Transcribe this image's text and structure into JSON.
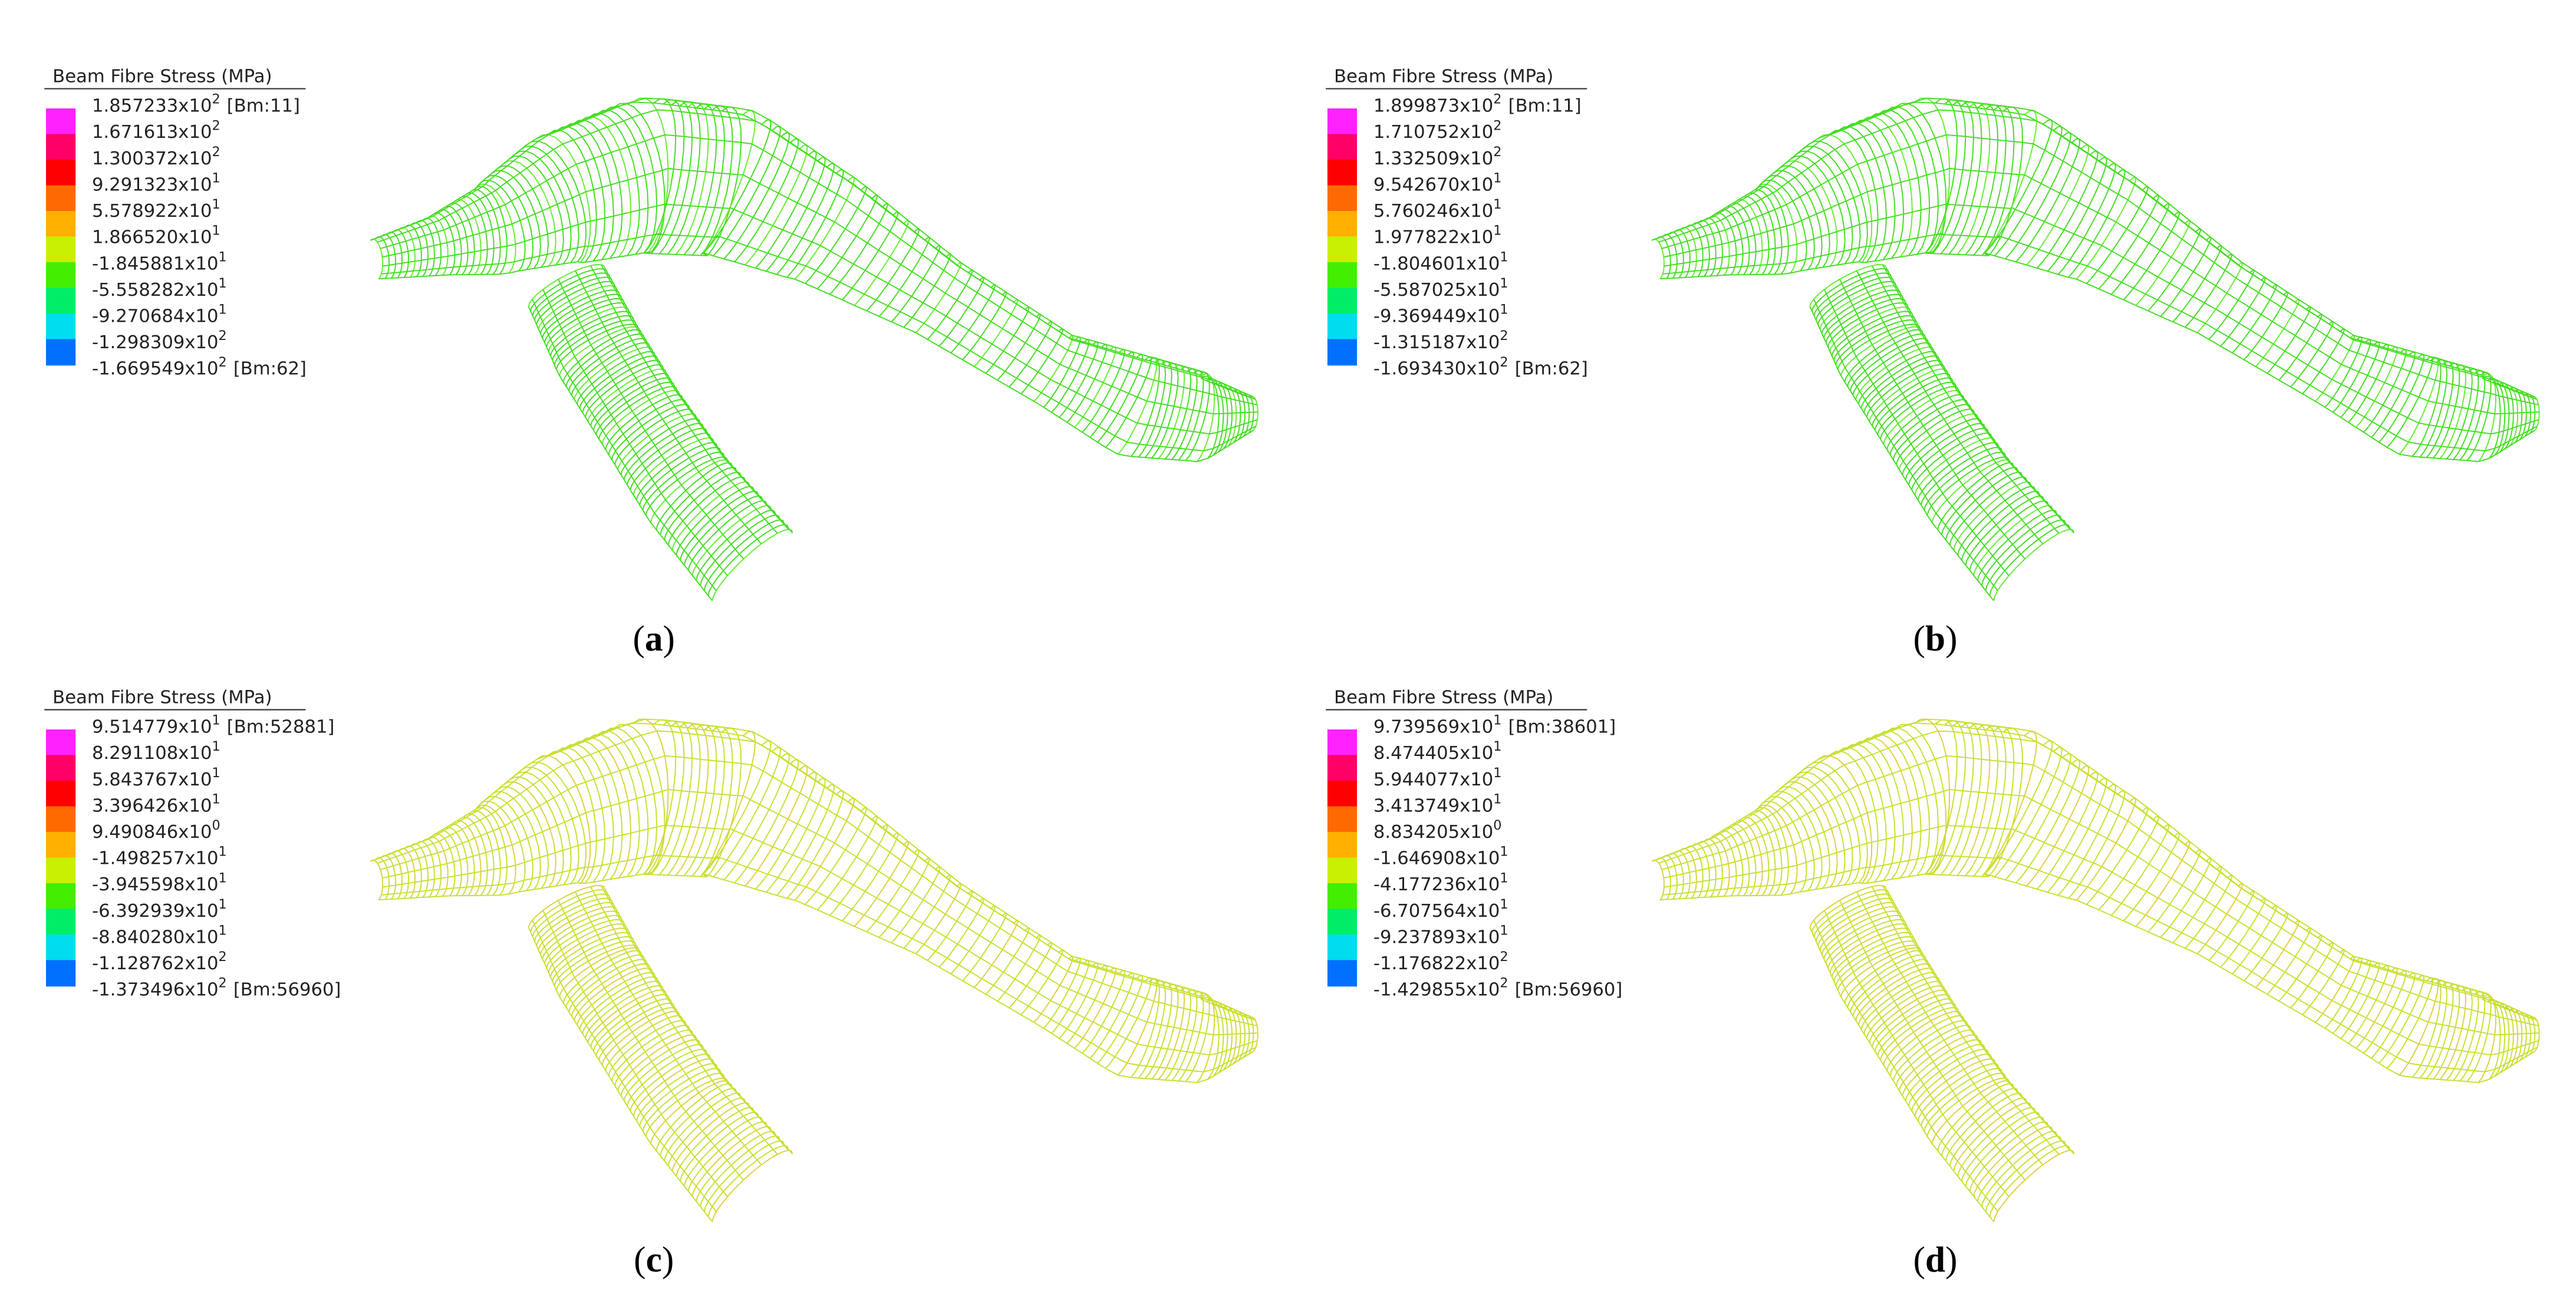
{
  "panels": [
    {
      "caption": [
        "(",
        "a",
        ")"
      ],
      "legend": {
        "title": "Beam Fibre Stress  (MPa)",
        "labels": [
          {
            "mantissa": "1.857233x10",
            "exponent": "2",
            "note": "[Bm:11]"
          },
          {
            "mantissa": "1.671613x10",
            "exponent": "2"
          },
          {
            "mantissa": "1.300372x10",
            "exponent": "2"
          },
          {
            "mantissa": "9.291323x10",
            "exponent": "1"
          },
          {
            "mantissa": "5.578922x10",
            "exponent": "1"
          },
          {
            "mantissa": "1.866520x10",
            "exponent": "1"
          },
          {
            "mantissa": "-1.845881x10",
            "exponent": "1"
          },
          {
            "mantissa": "-5.558282x10",
            "exponent": "1"
          },
          {
            "mantissa": "-9.270684x10",
            "exponent": "1"
          },
          {
            "mantissa": "-1.298309x10",
            "exponent": "2"
          },
          {
            "mantissa": "-1.669549x10",
            "exponent": "2",
            "note": "[Bm:62]"
          }
        ]
      }
    },
    {
      "caption": [
        "(",
        "b",
        ")"
      ],
      "legend": {
        "title": "Beam Fibre Stress  (MPa)",
        "labels": [
          {
            "mantissa": "1.899873x10",
            "exponent": "2",
            "note": "[Bm:11]"
          },
          {
            "mantissa": "1.710752x10",
            "exponent": "2"
          },
          {
            "mantissa": "1.332509x10",
            "exponent": "2"
          },
          {
            "mantissa": "9.542670x10",
            "exponent": "1"
          },
          {
            "mantissa": "5.760246x10",
            "exponent": "1"
          },
          {
            "mantissa": "1.977822x10",
            "exponent": "1"
          },
          {
            "mantissa": "-1.804601x10",
            "exponent": "1"
          },
          {
            "mantissa": "-5.587025x10",
            "exponent": "1"
          },
          {
            "mantissa": "-9.369449x10",
            "exponent": "1"
          },
          {
            "mantissa": "-1.315187x10",
            "exponent": "2"
          },
          {
            "mantissa": "-1.693430x10",
            "exponent": "2",
            "note": "[Bm:62]"
          }
        ]
      }
    },
    {
      "caption": [
        "(",
        "c",
        ")"
      ],
      "legend": {
        "title": "Beam Fibre Stress  (MPa)",
        "labels": [
          {
            "mantissa": "9.514779x10",
            "exponent": "1",
            "note": "[Bm:52881]"
          },
          {
            "mantissa": "8.291108x10",
            "exponent": "1"
          },
          {
            "mantissa": "5.843767x10",
            "exponent": "1"
          },
          {
            "mantissa": "3.396426x10",
            "exponent": "1"
          },
          {
            "mantissa": "9.490846x10",
            "exponent": "0"
          },
          {
            "mantissa": "-1.498257x10",
            "exponent": "1"
          },
          {
            "mantissa": "-3.945598x10",
            "exponent": "1"
          },
          {
            "mantissa": "-6.392939x10",
            "exponent": "1"
          },
          {
            "mantissa": "-8.840280x10",
            "exponent": "1"
          },
          {
            "mantissa": "-1.128762x10",
            "exponent": "2"
          },
          {
            "mantissa": "-1.373496x10",
            "exponent": "2",
            "note": "[Bm:56960]"
          }
        ]
      }
    },
    {
      "caption": [
        "(",
        "d",
        ")"
      ],
      "legend": {
        "title": "Beam Fibre Stress  (MPa)",
        "labels": [
          {
            "mantissa": "9.739569x10",
            "exponent": "1",
            "note": "[Bm:38601]"
          },
          {
            "mantissa": "8.474405x10",
            "exponent": "1"
          },
          {
            "mantissa": "5.944077x10",
            "exponent": "1"
          },
          {
            "mantissa": "3.413749x10",
            "exponent": "1"
          },
          {
            "mantissa": "8.834205x10",
            "exponent": "0"
          },
          {
            "mantissa": "-1.646908x10",
            "exponent": "1"
          },
          {
            "mantissa": "-4.177236x10",
            "exponent": "1"
          },
          {
            "mantissa": "-6.707564x10",
            "exponent": "1"
          },
          {
            "mantissa": "-9.237893x10",
            "exponent": "1"
          },
          {
            "mantissa": "-1.176822x10",
            "exponent": "2"
          },
          {
            "mantissa": "-1.429855x10",
            "exponent": "2",
            "note": "[Bm:56960]"
          }
        ]
      }
    }
  ]
}
